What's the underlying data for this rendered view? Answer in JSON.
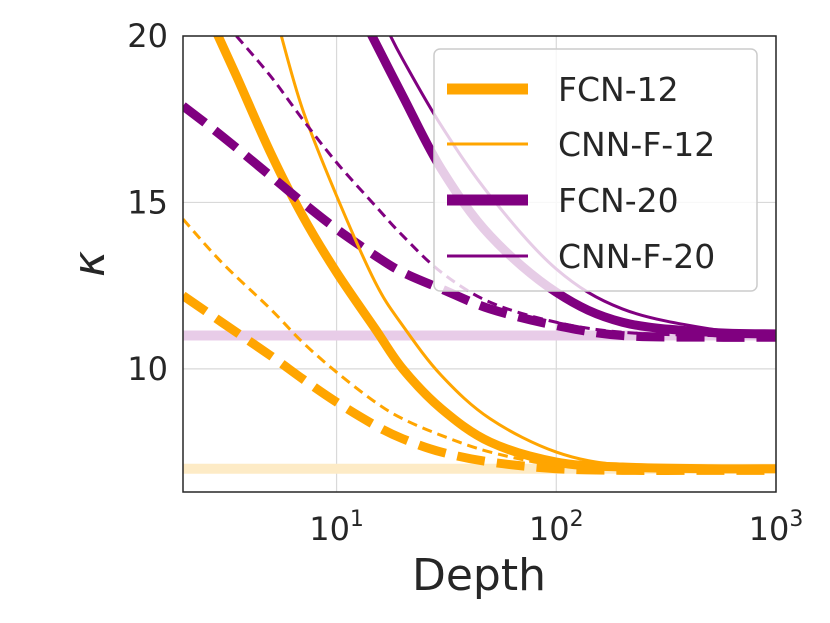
{
  "chart_data": {
    "type": "line",
    "xlabel": "Depth",
    "ylabel": "κ",
    "xscale": "log",
    "xlim": [
      2,
      1000
    ],
    "ylim": [
      6.3,
      20
    ],
    "xticks": [
      {
        "value": 10,
        "base": "10",
        "exp": "1"
      },
      {
        "value": 100,
        "base": "10",
        "exp": "2"
      },
      {
        "value": 1000,
        "base": "10",
        "exp": "3"
      }
    ],
    "yticks": [
      {
        "value": 10,
        "label": "10"
      },
      {
        "value": 15,
        "label": "15"
      },
      {
        "value": 20,
        "label": "20"
      }
    ],
    "grid": true,
    "legend_position": "top-right",
    "colors": {
      "orange": "#FFA500",
      "purple": "#800080",
      "orange_faint": "#FDEBC6",
      "purple_faint": "#E8CCE8",
      "axis": "#262626",
      "grid": "#d9d9d9"
    },
    "reference_lines": [
      {
        "name": "orange-limit",
        "y": 7.0,
        "color": "orange"
      },
      {
        "name": "purple-limit",
        "y": 11.0,
        "color": "purple"
      }
    ],
    "series": [
      {
        "name": "FCN-12",
        "in_legend": true,
        "color": "orange",
        "width": "thick",
        "dash": "solid",
        "x": [
          2.8,
          3.5,
          5,
          7,
          10,
          15,
          20,
          30,
          50,
          100,
          200,
          500,
          1000
        ],
        "y": [
          20.2,
          18.8,
          16.5,
          14.6,
          12.9,
          11.2,
          10.0,
          8.8,
          7.8,
          7.2,
          7.05,
          7.0,
          7.0
        ]
      },
      {
        "name": "CNN-F-12",
        "in_legend": true,
        "color": "orange",
        "width": "thin",
        "dash": "solid",
        "x": [
          5.5,
          7,
          10,
          15,
          20,
          30,
          50,
          100,
          200,
          500,
          1000
        ],
        "y": [
          20.2,
          17.8,
          15.2,
          12.6,
          11.3,
          9.8,
          8.5,
          7.5,
          7.1,
          7.0,
          7.0
        ]
      },
      {
        "name": "FCN-20",
        "in_legend": true,
        "color": "purple",
        "width": "thick",
        "dash": "solid",
        "x": [
          14,
          20,
          30,
          50,
          100,
          200,
          500,
          1000
        ],
        "y": [
          20.2,
          18.2,
          16.0,
          14.0,
          12.3,
          11.4,
          11.1,
          11.05
        ]
      },
      {
        "name": "CNN-F-20",
        "in_legend": true,
        "color": "purple",
        "width": "thin",
        "dash": "solid",
        "x": [
          17,
          20,
          30,
          50,
          100,
          200,
          500,
          1000
        ],
        "y": [
          20.2,
          19.3,
          17.3,
          15.2,
          13.0,
          11.8,
          11.2,
          11.05
        ]
      },
      {
        "name": "FCN-12 (dashed)",
        "in_legend": false,
        "color": "orange",
        "width": "thick",
        "dash": "dashed",
        "x": [
          2,
          3,
          5,
          7,
          10,
          15,
          20,
          30,
          50,
          100,
          200,
          500,
          1000
        ],
        "y": [
          12.2,
          11.4,
          10.4,
          9.7,
          9.0,
          8.3,
          7.9,
          7.5,
          7.2,
          7.0,
          6.95,
          6.95,
          6.95
        ]
      },
      {
        "name": "CNN-F-12 (dashed)",
        "in_legend": false,
        "color": "orange",
        "width": "thin",
        "dash": "dashed",
        "x": [
          2,
          3,
          5,
          7,
          10,
          15,
          20,
          30,
          50,
          100,
          200,
          500,
          1000
        ],
        "y": [
          14.5,
          13.2,
          11.8,
          10.8,
          9.9,
          9.0,
          8.5,
          8.0,
          7.5,
          7.1,
          7.0,
          6.95,
          6.95
        ]
      },
      {
        "name": "FCN-20 (dashed)",
        "in_legend": false,
        "color": "purple",
        "width": "thick",
        "dash": "dashed",
        "x": [
          2,
          3,
          5,
          7,
          10,
          15,
          20,
          30,
          50,
          100,
          200,
          500,
          1000
        ],
        "y": [
          17.9,
          17.0,
          15.8,
          15.0,
          14.2,
          13.4,
          12.9,
          12.4,
          11.8,
          11.3,
          11.0,
          10.95,
          10.95
        ]
      },
      {
        "name": "CNN-F-20 (dashed)",
        "in_legend": false,
        "color": "purple",
        "width": "thin",
        "dash": "dashed",
        "x": [
          3.5,
          5,
          7,
          10,
          15,
          20,
          30,
          50,
          100,
          200,
          500,
          1000
        ],
        "y": [
          20.0,
          18.8,
          17.5,
          16.2,
          14.9,
          14.0,
          12.9,
          12.0,
          11.4,
          11.1,
          11.0,
          11.0
        ]
      }
    ]
  }
}
